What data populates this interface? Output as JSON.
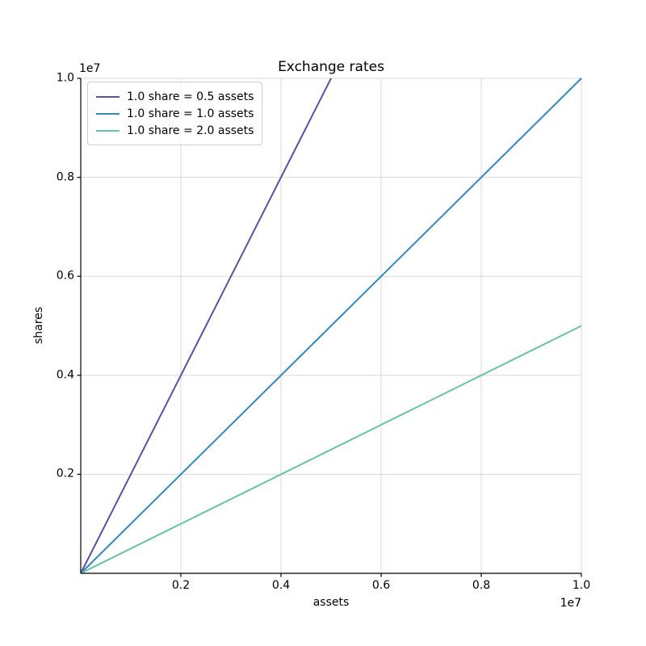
{
  "chart_data": {
    "type": "line",
    "title": "Exchange rates",
    "xlabel": "assets",
    "ylabel": "shares",
    "x_offset_text": "1e7",
    "y_offset_text": "1e7",
    "xlim": [
      0,
      10000000
    ],
    "ylim": [
      0,
      10000000
    ],
    "x_ticks": [
      2000000,
      4000000,
      6000000,
      8000000,
      10000000
    ],
    "x_tick_labels": [
      "0.2",
      "0.4",
      "0.6",
      "0.8",
      "1.0"
    ],
    "y_ticks": [
      2000000,
      4000000,
      6000000,
      8000000,
      10000000
    ],
    "y_tick_labels": [
      "0.2",
      "0.4",
      "0.6",
      "0.8",
      "1.0"
    ],
    "grid": true,
    "legend_position": "upper left",
    "series": [
      {
        "name": "1.0 share = 0.5 assets",
        "color": "#5e4fa2",
        "slope": 2.0,
        "points": [
          [
            0,
            0
          ],
          [
            5000000,
            10000000
          ]
        ]
      },
      {
        "name": "1.0 share = 1.0 assets",
        "color": "#3288bd",
        "slope": 1.0,
        "points": [
          [
            0,
            0
          ],
          [
            10000000,
            10000000
          ]
        ]
      },
      {
        "name": "1.0 share = 2.0 assets",
        "color": "#66c2a5",
        "slope": 0.5,
        "points": [
          [
            0,
            0
          ],
          [
            10000000,
            5000000
          ]
        ]
      }
    ]
  },
  "colors": {
    "grid": "#d8d8d8",
    "spine": "#000000",
    "text": "#000000",
    "legend_border": "#cccccc",
    "background": "#ffffff"
  }
}
